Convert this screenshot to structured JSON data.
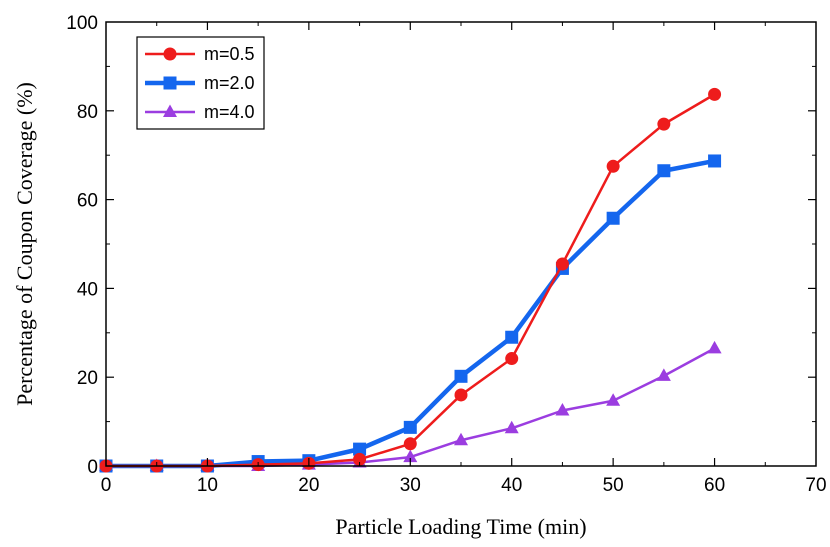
{
  "chart_data": {
    "type": "line",
    "xlabel": "Particle Loading Time (min)",
    "ylabel": "Percentage of Coupon Coverage (%)",
    "xlim": [
      0,
      70
    ],
    "ylim": [
      0,
      100
    ],
    "xticks": [
      "0",
      "10",
      "20",
      "30",
      "40",
      "50",
      "60",
      "70"
    ],
    "yticks": [
      "0",
      "20",
      "40",
      "60",
      "80",
      "100"
    ],
    "grid": false,
    "legend_position": "top-left",
    "x": [
      0,
      5,
      10,
      15,
      20,
      25,
      30,
      35,
      40,
      45,
      50,
      55,
      60
    ],
    "series": [
      {
        "name": "m=0.5",
        "color": "#ee1c1c",
        "marker": "circle",
        "values": [
          0,
          0,
          0,
          0.3,
          0.6,
          1.5,
          5,
          16,
          24.2,
          45.5,
          67.5,
          77,
          83.7
        ]
      },
      {
        "name": "m=2.0",
        "color": "#1466ee",
        "marker": "square",
        "values": [
          0,
          0,
          0,
          1,
          1.2,
          3.8,
          8.7,
          20.2,
          29,
          44.5,
          55.8,
          66.5,
          68.7
        ]
      },
      {
        "name": "m=4.0",
        "color": "#9b3de0",
        "marker": "triangle",
        "values": [
          0,
          0,
          0,
          0,
          0.3,
          0.8,
          2,
          5.8,
          8.5,
          12.5,
          14.7,
          20.3,
          26.5
        ]
      }
    ]
  }
}
